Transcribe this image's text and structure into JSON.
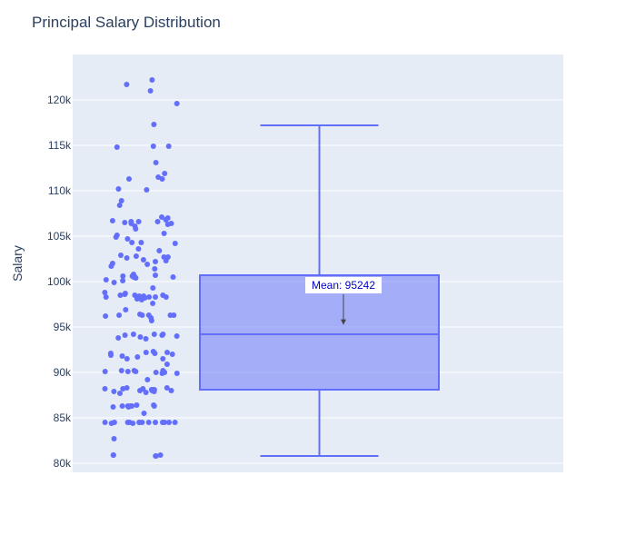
{
  "chart_data": {
    "type": "box",
    "title": "Principal Salary Distribution",
    "xlabel": "",
    "ylabel": "Salary",
    "ylim": [
      79000,
      125000
    ],
    "yticks": [
      80000,
      85000,
      90000,
      95000,
      100000,
      105000,
      110000,
      115000,
      120000
    ],
    "ytick_labels": [
      "80k",
      "85k",
      "90k",
      "95k",
      "100k",
      "105k",
      "110k",
      "115k",
      "120k"
    ],
    "grid": true,
    "colors": {
      "plot_bg": "#e5ecf6",
      "grid": "#ffffff",
      "marker": "#636efa",
      "box_fill": "rgba(99,110,250,0.5)",
      "annotation_text": "#0000cc"
    },
    "box": {
      "lower_whisker": 80800,
      "q1": 88100,
      "median": 94200,
      "q3": 100700,
      "upper_whisker": 117200
    },
    "annotation": {
      "text": "Mean: 95242",
      "value": 95242
    },
    "points": [
      122200,
      121700,
      121000,
      119600,
      117300,
      114900,
      114800,
      114900,
      113100,
      111900,
      111500,
      111300,
      111300,
      110200,
      110100,
      108900,
      108400,
      107100,
      107000,
      106800,
      106700,
      106600,
      106600,
      106600,
      106500,
      106400,
      106400,
      106300,
      106100,
      105800,
      105300,
      105100,
      104900,
      104700,
      104300,
      104300,
      104200,
      103600,
      103400,
      102900,
      102800,
      102700,
      102700,
      102600,
      102400,
      102300,
      102200,
      102000,
      101900,
      101700,
      101400,
      100800,
      100700,
      100600,
      100600,
      100500,
      100500,
      100500,
      100400,
      100200,
      100100,
      99900,
      99300,
      98800,
      98700,
      98600,
      98500,
      98500,
      98500,
      98400,
      98400,
      98300,
      98300,
      98300,
      98300,
      98200,
      98100,
      98000,
      97600,
      96900,
      96400,
      96300,
      96300,
      96300,
      96300,
      96300,
      96200,
      96000,
      95700,
      94200,
      94200,
      94200,
      94100,
      94100,
      94000,
      93900,
      93800,
      93700,
      92300,
      92200,
      92200,
      92100,
      92100,
      92000,
      91900,
      91800,
      91700,
      91500,
      91500,
      90900,
      90200,
      90200,
      90200,
      90100,
      90100,
      90100,
      90000,
      90000,
      89900,
      89900,
      89200,
      88300,
      88300,
      88200,
      88200,
      88200,
      88100,
      88100,
      88100,
      88000,
      88000,
      88000,
      87900,
      87900,
      87800,
      87700,
      86400,
      86400,
      86300,
      86300,
      86300,
      86300,
      86300,
      86200,
      86200,
      85500,
      84500,
      84500,
      84500,
      84500,
      84500,
      84500,
      84500,
      84500,
      84500,
      84500,
      84500,
      84500,
      84500,
      84400,
      84400,
      82700,
      80900,
      80900,
      80900,
      80800,
      80800
    ]
  }
}
